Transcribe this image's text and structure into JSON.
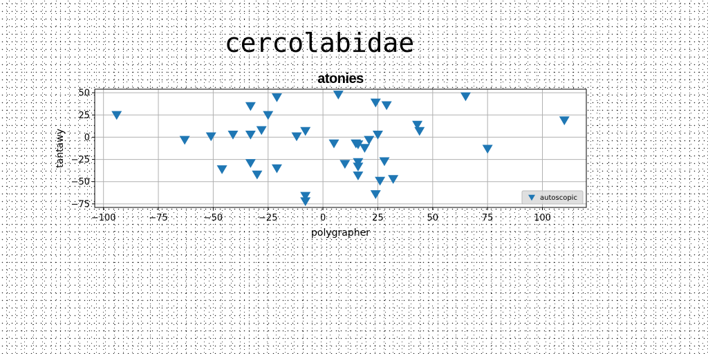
{
  "figure": {
    "suptitle": "cercolabidae"
  },
  "chart_data": {
    "type": "scatter",
    "title": "atonies",
    "xlabel": "polygrapher",
    "ylabel": "tantawy",
    "xlim": [
      -104,
      120
    ],
    "ylim": [
      -79,
      54
    ],
    "xticks": [
      -100,
      -75,
      -50,
      -25,
      0,
      25,
      50,
      75,
      100
    ],
    "yticks": [
      -75,
      -50,
      -25,
      0,
      25,
      50
    ],
    "grid": true,
    "legend": {
      "position": "lower right",
      "entries": [
        "autoscopic"
      ]
    },
    "series": [
      {
        "name": "autoscopic",
        "marker": "triangle-down",
        "color": "#1f77b4",
        "points": [
          [
            -94,
            25
          ],
          [
            -63,
            -3
          ],
          [
            -51,
            1
          ],
          [
            -46,
            -36
          ],
          [
            -41,
            3
          ],
          [
            -33,
            3
          ],
          [
            -33,
            35
          ],
          [
            -33,
            -29
          ],
          [
            -30,
            -42
          ],
          [
            -28,
            8
          ],
          [
            -25,
            25
          ],
          [
            -21,
            45
          ],
          [
            -21,
            -35
          ],
          [
            -12,
            1
          ],
          [
            -8,
            7
          ],
          [
            -8,
            -72
          ],
          [
            -8,
            -66
          ],
          [
            5,
            -7
          ],
          [
            7,
            48
          ],
          [
            10,
            -30
          ],
          [
            15,
            -7
          ],
          [
            16,
            -8
          ],
          [
            16,
            -28
          ],
          [
            16,
            -33
          ],
          [
            16,
            -43
          ],
          [
            19,
            -12
          ],
          [
            21,
            -3
          ],
          [
            24,
            39
          ],
          [
            25,
            3
          ],
          [
            24,
            -64
          ],
          [
            26,
            -49
          ],
          [
            28,
            -27
          ],
          [
            29,
            36
          ],
          [
            32,
            -47
          ],
          [
            43,
            14
          ],
          [
            44,
            7
          ],
          [
            65,
            46
          ],
          [
            75,
            -13
          ],
          [
            110,
            19
          ]
        ]
      }
    ]
  }
}
